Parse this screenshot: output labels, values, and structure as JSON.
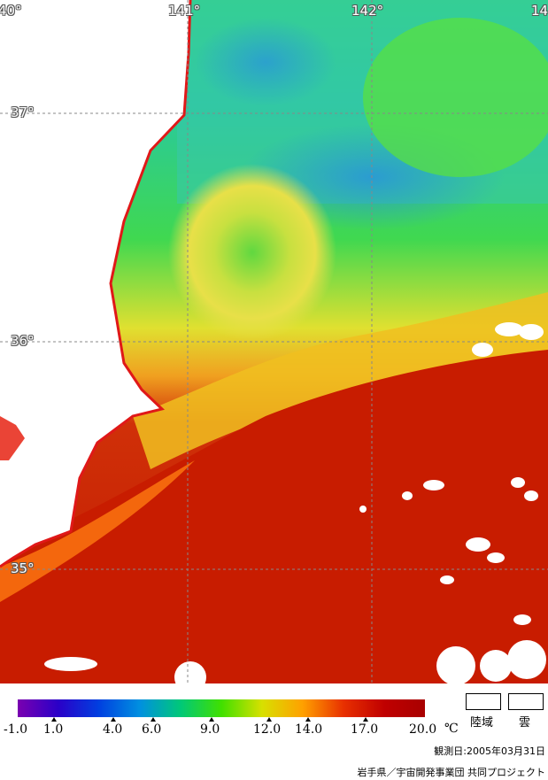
{
  "map": {
    "lon_labels": [
      "40°",
      "141°",
      "142°",
      "14"
    ],
    "lat_labels": [
      "37°",
      "36°",
      "35°"
    ]
  },
  "colorbar": {
    "ticks": [
      "-1.0",
      "1.0",
      "4.0",
      "6.0",
      "9.0",
      "12.0",
      "14.0",
      "17.0",
      "20.0"
    ],
    "unit": "℃",
    "colors": [
      "#7a00b0",
      "#2a00c8",
      "#0040e0",
      "#0090e0",
      "#00c878",
      "#40e000",
      "#d8e000",
      "#ffa000",
      "#e83000",
      "#c00000",
      "#a80000"
    ]
  },
  "legend": {
    "land_label": "陸域",
    "cloud_label": "雲"
  },
  "footer": {
    "date": "観測日:2005年03月31日",
    "credit": "岩手県／宇宙開発事業団  共同プロジェクト"
  }
}
